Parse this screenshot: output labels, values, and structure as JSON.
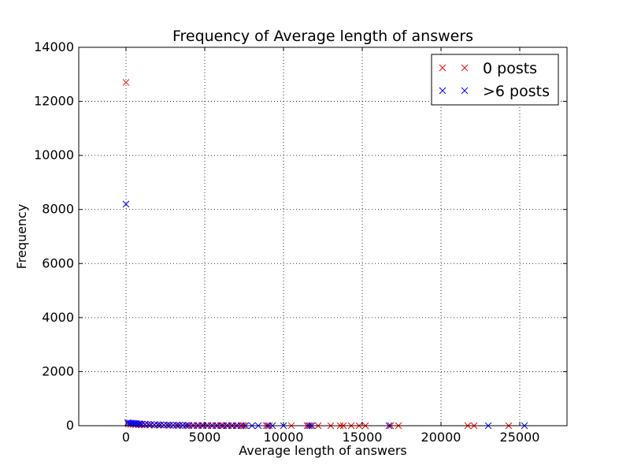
{
  "chart_data": {
    "type": "scatter",
    "title": "Frequency of Average length of answers",
    "xlabel": "Average length of answers",
    "ylabel": "Frequency",
    "xlim": [
      -3000,
      28000
    ],
    "ylim": [
      0,
      14000
    ],
    "xticks": [
      0,
      5000,
      10000,
      15000,
      20000,
      25000
    ],
    "yticks": [
      0,
      2000,
      4000,
      6000,
      8000,
      10000,
      12000,
      14000
    ],
    "grid": true,
    "legend_position": "top-right",
    "marker": "x",
    "series": [
      {
        "name": "0 posts",
        "color": "#ff0000",
        "x": [
          0,
          150,
          300,
          450,
          600,
          800,
          1000,
          1200,
          1500,
          1800,
          2100,
          2400,
          2700,
          3000,
          3300,
          3600,
          3900,
          4200,
          4500,
          4800,
          5100,
          5400,
          5700,
          6000,
          6200,
          6500,
          6800,
          7100,
          7400,
          7500,
          8900,
          9100,
          10500,
          11500,
          11700,
          12200,
          13000,
          13600,
          13800,
          14300,
          14800,
          15200,
          16800,
          17300,
          21700,
          22100,
          24300
        ],
        "y": [
          12700,
          60,
          50,
          45,
          40,
          35,
          30,
          28,
          25,
          22,
          20,
          18,
          16,
          14,
          12,
          11,
          10,
          9,
          8,
          7,
          6,
          6,
          5,
          5,
          4,
          4,
          3,
          3,
          3,
          2,
          2,
          1,
          2,
          1,
          1,
          1,
          1,
          1,
          1,
          1,
          1,
          1,
          1,
          1,
          1,
          1,
          1
        ]
      },
      {
        "name": ">6 posts",
        "color": "#0000ff",
        "x": [
          0,
          100,
          200,
          300,
          400,
          500,
          600,
          700,
          800,
          900,
          1000,
          1200,
          1400,
          1600,
          1800,
          2000,
          2200,
          2400,
          2600,
          2800,
          3000,
          3200,
          3400,
          3600,
          3800,
          4000,
          4300,
          4600,
          4900,
          5200,
          5500,
          5800,
          6100,
          6400,
          6700,
          7000,
          7300,
          7600,
          8000,
          8400,
          9000,
          9300,
          10000,
          11600,
          11800,
          16700,
          23000,
          25300
        ],
        "y": [
          8200,
          110,
          100,
          95,
          90,
          85,
          80,
          75,
          70,
          65,
          60,
          55,
          50,
          45,
          40,
          36,
          32,
          28,
          25,
          22,
          20,
          18,
          16,
          14,
          12,
          10,
          9,
          8,
          7,
          6,
          5,
          4,
          4,
          3,
          3,
          2,
          2,
          2,
          1,
          1,
          1,
          1,
          1,
          1,
          1,
          1,
          1,
          1
        ]
      }
    ]
  }
}
